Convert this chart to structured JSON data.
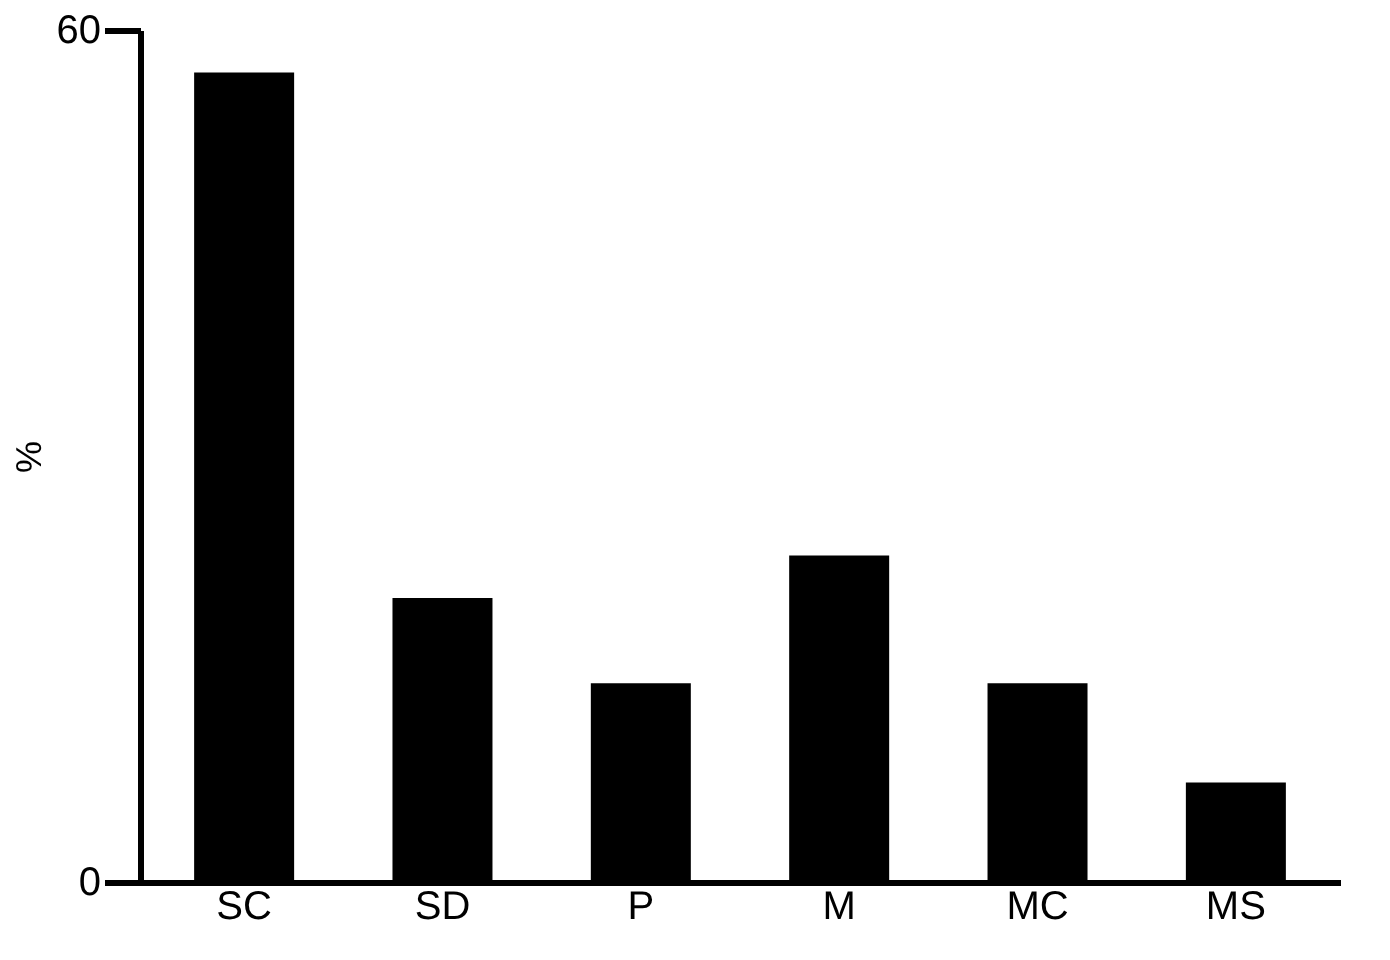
{
  "chart_data": {
    "type": "bar",
    "ylabel": "%",
    "categories": [
      "SC",
      "SD",
      "P",
      "M",
      "MC",
      "MS"
    ],
    "values": [
      57,
      20,
      14,
      23,
      14,
      7
    ],
    "color": "#000000",
    "ylim": [
      0,
      60
    ],
    "yticks": [
      0,
      60
    ],
    "grid": false
  }
}
